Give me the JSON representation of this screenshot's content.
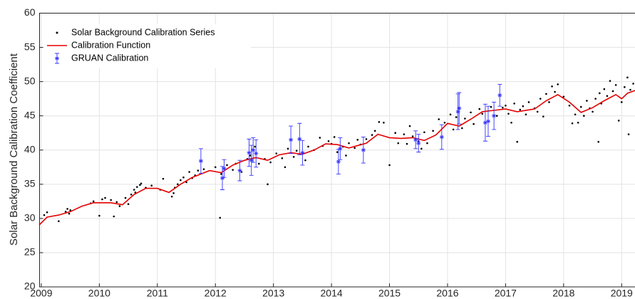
{
  "chart_data": {
    "type": "scatter",
    "ylabel": "Solar Background Calibration Coefficient",
    "xlim": [
      2008.97,
      2019.23
    ],
    "ylim": [
      20,
      60
    ],
    "xticks": [
      2009,
      2010,
      2011,
      2012,
      2013,
      2014,
      2015,
      2016,
      2017,
      2018,
      2019
    ],
    "yticks": [
      20,
      25,
      30,
      35,
      40,
      45,
      50,
      55,
      60
    ],
    "grid": true,
    "legend": "upper left",
    "series": [
      {
        "name": "Solar Background Calibration Series",
        "kind": "points",
        "color": "#000000",
        "x": [
          2009.05,
          2009.1,
          2009.3,
          2009.42,
          2009.45,
          2009.48,
          2009.5,
          2009.85,
          2009.9,
          2010.0,
          2010.05,
          2010.1,
          2010.2,
          2010.25,
          2010.3,
          2010.35,
          2010.45,
          2010.5,
          2010.55,
          2010.6,
          2010.62,
          2010.65,
          2010.7,
          2010.72,
          2010.8,
          2010.9,
          2011.05,
          2011.1,
          2011.25,
          2011.28,
          2011.3,
          2011.35,
          2011.4,
          2011.45,
          2011.5,
          2011.55,
          2011.6,
          2011.65,
          2011.7,
          2011.8,
          2012.0,
          2012.08,
          2012.1,
          2012.2,
          2012.3,
          2012.35,
          2012.45,
          2012.55,
          2012.6,
          2012.68,
          2012.75,
          2012.85,
          2012.9,
          2012.95,
          2013.05,
          2013.15,
          2013.2,
          2013.25,
          2013.35,
          2013.4,
          2013.55,
          2013.6,
          2013.7,
          2013.8,
          2013.85,
          2013.95,
          2014.0,
          2014.05,
          2014.1,
          2014.2,
          2014.25,
          2014.3,
          2014.4,
          2014.45,
          2014.5,
          2014.6,
          2014.7,
          2014.75,
          2014.82,
          2014.9,
          2015.0,
          2015.1,
          2015.15,
          2015.25,
          2015.3,
          2015.35,
          2015.4,
          2015.5,
          2015.55,
          2015.6,
          2015.65,
          2015.75,
          2015.85,
          2015.95,
          2016.05,
          2016.1,
          2016.15,
          2016.25,
          2016.3,
          2016.4,
          2016.45,
          2016.55,
          2016.6,
          2016.75,
          2016.85,
          2016.95,
          2017.0,
          2017.05,
          2017.1,
          2017.15,
          2017.2,
          2017.25,
          2017.3,
          2017.35,
          2017.4,
          2017.5,
          2017.55,
          2017.6,
          2017.65,
          2017.7,
          2017.75,
          2017.8,
          2017.85,
          2017.9,
          2018.0,
          2018.1,
          2018.15,
          2018.2,
          2018.25,
          2018.3,
          2018.35,
          2018.4,
          2018.45,
          2018.5,
          2018.55,
          2018.6,
          2018.62,
          2018.65,
          2018.7,
          2018.75,
          2018.8,
          2018.85,
          2018.9,
          2018.95,
          2019.0,
          2019.05,
          2019.1,
          2019.12,
          2019.15,
          2019.2
        ],
        "values": [
          30.5,
          30.9,
          29.6,
          31.0,
          31.4,
          30.7,
          31.2,
          32.2,
          32.5,
          30.4,
          32.8,
          33.0,
          32.7,
          30.3,
          32.4,
          31.8,
          33.0,
          32.1,
          33.5,
          34.2,
          33.8,
          34.6,
          34.9,
          35.1,
          34.5,
          34.8,
          34.2,
          35.8,
          33.2,
          33.7,
          34.5,
          35.0,
          35.6,
          36.0,
          35.3,
          36.8,
          35.9,
          36.3,
          37.0,
          37.2,
          37.5,
          30.1,
          36.5,
          37.8,
          37.1,
          38.0,
          36.8,
          38.7,
          39.2,
          40.5,
          38.0,
          38.7,
          35.0,
          38.2,
          39.5,
          38.8,
          37.5,
          40.2,
          39.0,
          39.9,
          38.5,
          40.5,
          40.0,
          41.8,
          40.6,
          41.3,
          40.9,
          41.9,
          39.7,
          40.5,
          39.2,
          41.0,
          40.3,
          41.5,
          40.8,
          41.6,
          42.2,
          42.8,
          44.1,
          44.0,
          37.8,
          42.5,
          41.0,
          42.3,
          40.9,
          43.5,
          42.0,
          41.3,
          40.2,
          42.6,
          41.0,
          42.8,
          44.5,
          44.0,
          45.2,
          43.0,
          44.8,
          43.2,
          44.6,
          45.5,
          43.8,
          46.0,
          45.3,
          46.3,
          45.0,
          46.2,
          46.5,
          45.3,
          44.0,
          46.8,
          41.2,
          45.9,
          46.4,
          45.2,
          47.0,
          46.1,
          45.6,
          47.5,
          44.9,
          48.2,
          47.0,
          49.3,
          48.5,
          49.6,
          47.8,
          46.5,
          43.9,
          45.2,
          44.0,
          46.3,
          45.0,
          47.2,
          46.1,
          45.6,
          47.5,
          41.2,
          48.3,
          46.8,
          48.9,
          47.9,
          50.1,
          48.6,
          49.5,
          44.3,
          47.0,
          49.2,
          50.6,
          42.3,
          48.8,
          49.7
        ]
      },
      {
        "name": "Calibration Function",
        "kind": "line",
        "color": "#e60000",
        "x": [
          2008.97,
          2009.1,
          2009.3,
          2009.5,
          2009.7,
          2009.9,
          2010.2,
          2010.4,
          2010.6,
          2010.8,
          2011.0,
          2011.2,
          2011.4,
          2011.6,
          2011.9,
          2012.1,
          2012.3,
          2012.5,
          2012.7,
          2012.9,
          2013.1,
          2013.3,
          2013.5,
          2013.7,
          2013.9,
          2014.1,
          2014.3,
          2014.6,
          2014.8,
          2015.0,
          2015.2,
          2015.4,
          2015.6,
          2015.8,
          2016.0,
          2016.2,
          2016.4,
          2016.6,
          2016.8,
          2017.0,
          2017.2,
          2017.5,
          2017.7,
          2017.9,
          2018.1,
          2018.3,
          2018.5,
          2018.7,
          2018.9,
          2019.0,
          2019.1,
          2019.23
        ],
        "values": [
          29.1,
          30.2,
          30.5,
          31.0,
          31.8,
          32.3,
          32.3,
          32.0,
          33.5,
          34.4,
          34.4,
          33.8,
          35.0,
          36.0,
          37.0,
          36.7,
          37.8,
          38.5,
          38.9,
          38.5,
          39.3,
          39.6,
          39.4,
          40.0,
          40.9,
          40.8,
          40.3,
          41.0,
          42.3,
          41.8,
          41.7,
          41.8,
          41.4,
          42.2,
          43.9,
          43.5,
          44.5,
          45.6,
          45.8,
          46.0,
          45.6,
          46.0,
          47.2,
          48.1,
          47.0,
          45.5,
          46.2,
          47.2,
          48.1,
          47.5,
          48.3,
          48.7
        ]
      },
      {
        "name": "GRUAN Calibration",
        "kind": "errorbar",
        "color": "#3333ff",
        "x": [
          2011.75,
          2012.12,
          2012.15,
          2012.42,
          2012.58,
          2012.62,
          2012.65,
          2012.7,
          2013.3,
          2013.45,
          2013.5,
          2014.12,
          2014.15,
          2014.55,
          2015.45,
          2015.5,
          2015.9,
          2016.18,
          2016.2,
          2016.65,
          2016.7,
          2016.8,
          2016.9
        ],
        "values": [
          38.4,
          35.9,
          37.3,
          37.0,
          39.6,
          38.5,
          40.0,
          39.5,
          41.5,
          41.6,
          39.6,
          38.3,
          40.2,
          40.0,
          41.5,
          41.0,
          41.9,
          45.6,
          46.1,
          44.0,
          44.2,
          45.0,
          48.0
        ],
        "errors": [
          1.8,
          1.7,
          1.3,
          1.5,
          2.0,
          2.2,
          1.8,
          2.0,
          2.0,
          2.3,
          1.8,
          1.8,
          1.6,
          1.9,
          1.3,
          1.3,
          1.8,
          2.6,
          2.3,
          2.7,
          2.2,
          2.0,
          1.6
        ]
      }
    ]
  }
}
